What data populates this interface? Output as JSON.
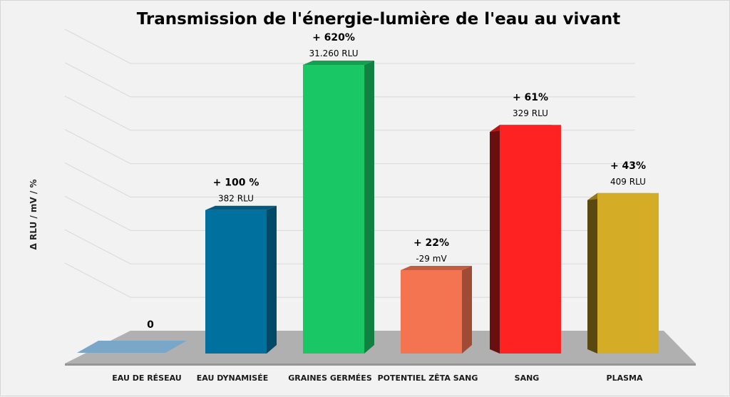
{
  "chart_data": {
    "type": "bar",
    "title": "Transmission de l'énergie-lumière de l'eau au vivant",
    "ylabel": "Δ RLU / mV / %",
    "xlabel": "",
    "categories": [
      "EAU DE RÉSEAU",
      "EAU DYNAMISÉE",
      "GRAINES GERMÉES",
      "POTENTIEL ZÊTA SANG",
      "SANG",
      "PLASMA"
    ],
    "values": [
      0,
      100,
      620,
      22,
      61,
      43
    ],
    "percent_labels": [
      "0",
      "+ 100 %",
      "+ 620%",
      "+ 22%",
      "+ 61%",
      "+ 43%"
    ],
    "value_labels": [
      "",
      "382 RLU",
      "31.260 RLU",
      "-29 mV",
      "329 RLU",
      "409 RLU"
    ],
    "bar_heights_relative": [
      0,
      0.497,
      1.0,
      0.289,
      0.792,
      0.556
    ],
    "colors": [
      "#7aa7c7",
      "#00709f",
      "#1ac765",
      "#f47452",
      "#ff2222",
      "#d4ac26"
    ],
    "grid": true,
    "legend": "none",
    "style": "3d-bars"
  }
}
